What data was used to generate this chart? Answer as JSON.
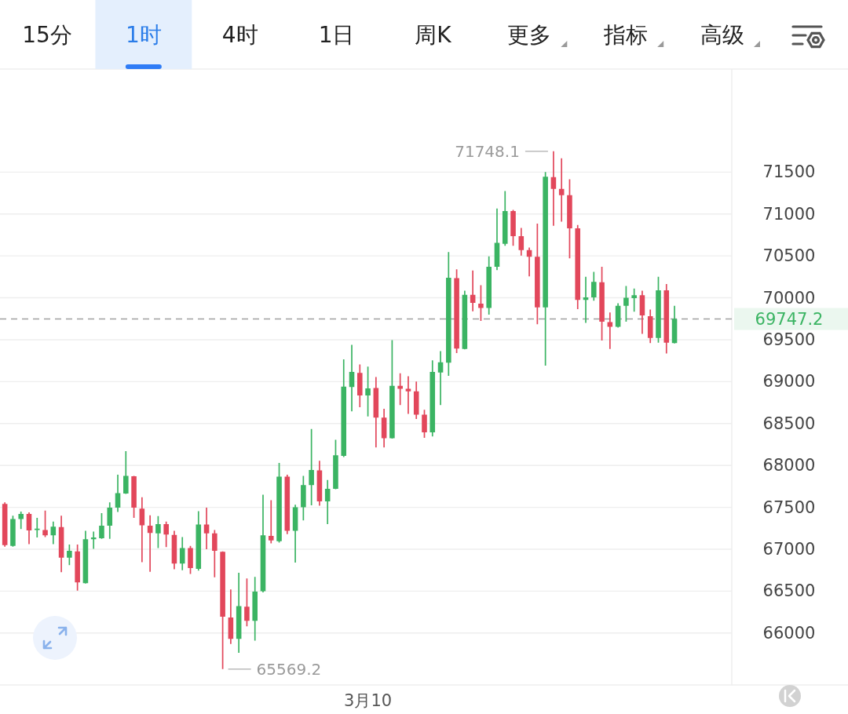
{
  "chart_data": {
    "type": "candlestick",
    "categories": [
      null,
      null,
      null,
      null,
      null,
      null,
      null,
      null,
      null,
      null,
      null,
      null,
      null,
      null,
      null,
      null,
      null,
      null,
      null,
      null,
      null,
      null,
      null,
      null,
      null,
      null,
      null,
      null,
      null,
      null,
      null,
      null,
      null,
      null,
      null,
      null,
      null,
      null,
      null,
      null,
      null,
      null,
      null,
      null,
      null,
      "3月10",
      null,
      null,
      null,
      null,
      null,
      null,
      null,
      null,
      null,
      null,
      null,
      null,
      null,
      null,
      null,
      null,
      null,
      null,
      null,
      null,
      null,
      null,
      null,
      null,
      null,
      null,
      null,
      null,
      null,
      null,
      null,
      null,
      null,
      null,
      null,
      null,
      null,
      null
    ],
    "ohlc": [
      [
        67540,
        67560,
        67030,
        67050
      ],
      [
        67040,
        67400,
        67030,
        67360
      ],
      [
        67360,
        67450,
        67240,
        67420
      ],
      [
        67420,
        67440,
        67060,
        67225
      ],
      [
        67230,
        67375,
        67140,
        67245
      ],
      [
        67230,
        67460,
        67145,
        67165
      ],
      [
        67165,
        67330,
        67060,
        67270
      ],
      [
        67265,
        67400,
        66725,
        66900
      ],
      [
        66900,
        67055,
        66810,
        66980
      ],
      [
        66975,
        67055,
        66505,
        66605
      ],
      [
        66595,
        67220,
        66590,
        67120
      ],
      [
        67120,
        67210,
        67005,
        67140
      ],
      [
        67130,
        67430,
        67125,
        67280
      ],
      [
        67280,
        67560,
        67125,
        67495
      ],
      [
        67495,
        67890,
        67445,
        67670
      ],
      [
        67665,
        68170,
        67660,
        67875
      ],
      [
        67870,
        67875,
        67375,
        67495
      ],
      [
        67485,
        67620,
        66845,
        67285
      ],
      [
        67280,
        67405,
        66730,
        67195
      ],
      [
        67190,
        67395,
        67015,
        67300
      ],
      [
        67300,
        67330,
        67025,
        67175
      ],
      [
        67170,
        67220,
        66760,
        66830
      ],
      [
        66830,
        67145,
        66750,
        67015
      ],
      [
        67015,
        67040,
        66705,
        66775
      ],
      [
        66765,
        67455,
        66745,
        67295
      ],
      [
        67295,
        67495,
        67000,
        67190
      ],
      [
        67190,
        67230,
        66665,
        66980
      ],
      [
        66970,
        66975,
        65569.2,
        66195
      ],
      [
        66185,
        66520,
        65870,
        65930
      ],
      [
        65930,
        66720,
        65765,
        66320
      ],
      [
        66315,
        66650,
        66080,
        66145
      ],
      [
        66145,
        66670,
        65910,
        66495
      ],
      [
        66500,
        67650,
        66485,
        67165
      ],
      [
        67160,
        67585,
        67070,
        67105
      ],
      [
        67095,
        68030,
        67080,
        67865
      ],
      [
        67865,
        67890,
        67180,
        67220
      ],
      [
        67220,
        67530,
        66840,
        67500
      ],
      [
        67500,
        67875,
        67345,
        67765
      ],
      [
        67765,
        68435,
        67525,
        67945
      ],
      [
        67940,
        68055,
        67520,
        67570
      ],
      [
        67570,
        67825,
        67300,
        67720
      ],
      [
        67720,
        68305,
        67715,
        68120
      ],
      [
        68115,
        69265,
        68100,
        68940
      ],
      [
        68935,
        69440,
        68645,
        69115
      ],
      [
        69105,
        69205,
        68695,
        68835
      ],
      [
        68835,
        69180,
        68585,
        68920
      ],
      [
        68925,
        69055,
        68215,
        68570
      ],
      [
        68570,
        68675,
        68215,
        68325
      ],
      [
        68325,
        69495,
        68320,
        68950
      ],
      [
        68950,
        69100,
        68720,
        68915
      ],
      [
        68915,
        69065,
        68615,
        68885
      ],
      [
        68885,
        69000,
        68555,
        68605
      ],
      [
        68605,
        68665,
        68330,
        68395
      ],
      [
        68395,
        69255,
        68345,
        69115
      ],
      [
        69110,
        69365,
        68720,
        69230
      ],
      [
        69225,
        70545,
        69070,
        70240
      ],
      [
        70235,
        70340,
        69340,
        69395
      ],
      [
        69390,
        70085,
        69385,
        70035
      ],
      [
        70035,
        70325,
        69840,
        69940
      ],
      [
        69930,
        70150,
        69725,
        69880
      ],
      [
        69880,
        70495,
        69800,
        70370
      ],
      [
        70370,
        71065,
        70330,
        70655
      ],
      [
        70645,
        71275,
        70620,
        71035
      ],
      [
        71035,
        71050,
        70620,
        70735
      ],
      [
        70735,
        70835,
        70505,
        70570
      ],
      [
        70570,
        70600,
        70255,
        70490
      ],
      [
        70490,
        70885,
        69685,
        69885
      ],
      [
        69885,
        71500,
        69190,
        71445
      ],
      [
        71440,
        71748.1,
        70860,
        71300
      ],
      [
        71300,
        71665,
        70910,
        71225
      ],
      [
        71225,
        71415,
        70470,
        70830
      ],
      [
        70830,
        70870,
        69865,
        69975
      ],
      [
        69975,
        70250,
        69700,
        70005
      ],
      [
        70005,
        70310,
        69965,
        70190
      ],
      [
        70185,
        70370,
        69490,
        69715
      ],
      [
        69710,
        69825,
        69390,
        69655
      ],
      [
        69655,
        69935,
        69645,
        69905
      ],
      [
        69905,
        70140,
        69715,
        70000
      ],
      [
        69995,
        70110,
        69835,
        70030
      ],
      [
        70030,
        70085,
        69570,
        69790
      ],
      [
        69780,
        69860,
        69460,
        69520
      ],
      [
        69520,
        70250,
        69465,
        70090
      ],
      [
        70090,
        70165,
        69335,
        69465
      ],
      [
        69460,
        69905,
        69455,
        69747.2
      ]
    ],
    "colors": [
      "#e2475b",
      "#3bb463",
      "#3bb463",
      "#e2475b",
      "#3bb463",
      "#e2475b",
      "#3bb463",
      "#e2475b",
      "#3bb463",
      "#e2475b",
      "#3bb463",
      "#3bb463",
      "#3bb463",
      "#3bb463",
      "#3bb463",
      "#3bb463",
      "#e2475b",
      "#e2475b",
      "#e2475b",
      "#3bb463",
      "#e2475b",
      "#e2475b",
      "#3bb463",
      "#e2475b",
      "#3bb463",
      "#e2475b",
      "#e2475b",
      "#e2475b",
      "#e2475b",
      "#3bb463",
      "#e2475b",
      "#3bb463",
      "#3bb463",
      "#e2475b",
      "#3bb463",
      "#e2475b",
      "#3bb463",
      "#3bb463",
      "#3bb463",
      "#e2475b",
      "#3bb463",
      "#3bb463",
      "#3bb463",
      "#3bb463",
      "#e2475b",
      "#3bb463",
      "#e2475b",
      "#e2475b",
      "#3bb463",
      "#e2475b",
      "#e2475b",
      "#e2475b",
      "#e2475b",
      "#3bb463",
      "#3bb463",
      "#3bb463",
      "#e2475b",
      "#3bb463",
      "#e2475b",
      "#e2475b",
      "#3bb463",
      "#3bb463",
      "#3bb463",
      "#e2475b",
      "#e2475b",
      "#e2475b",
      "#e2475b",
      "#3bb463",
      "#e2475b",
      "#e2475b",
      "#e2475b",
      "#e2475b",
      "#3bb463",
      "#3bb463",
      "#e2475b",
      "#e2475b",
      "#3bb463",
      "#3bb463",
      "#3bb463",
      "#e2475b",
      "#e2475b",
      "#3bb463",
      "#e2475b",
      "#3bb463"
    ],
    "ylim": [
      65380,
      72730
    ],
    "yticks": [
      66000,
      66500,
      67000,
      67500,
      68000,
      68500,
      69000,
      69500,
      70000,
      70500,
      71000,
      71500
    ],
    "grid": "y",
    "ref_lines": [
      {
        "axis": "y",
        "value": 69747.2,
        "label": "69747.2",
        "color": "#a0a0a0",
        "line_style": "dashed"
      }
    ],
    "annotations": [
      "15分",
      "1时",
      "4时",
      "1日",
      "周K",
      "更多",
      "指标",
      "高级",
      "71748.1",
      "65569.2"
    ]
  }
}
